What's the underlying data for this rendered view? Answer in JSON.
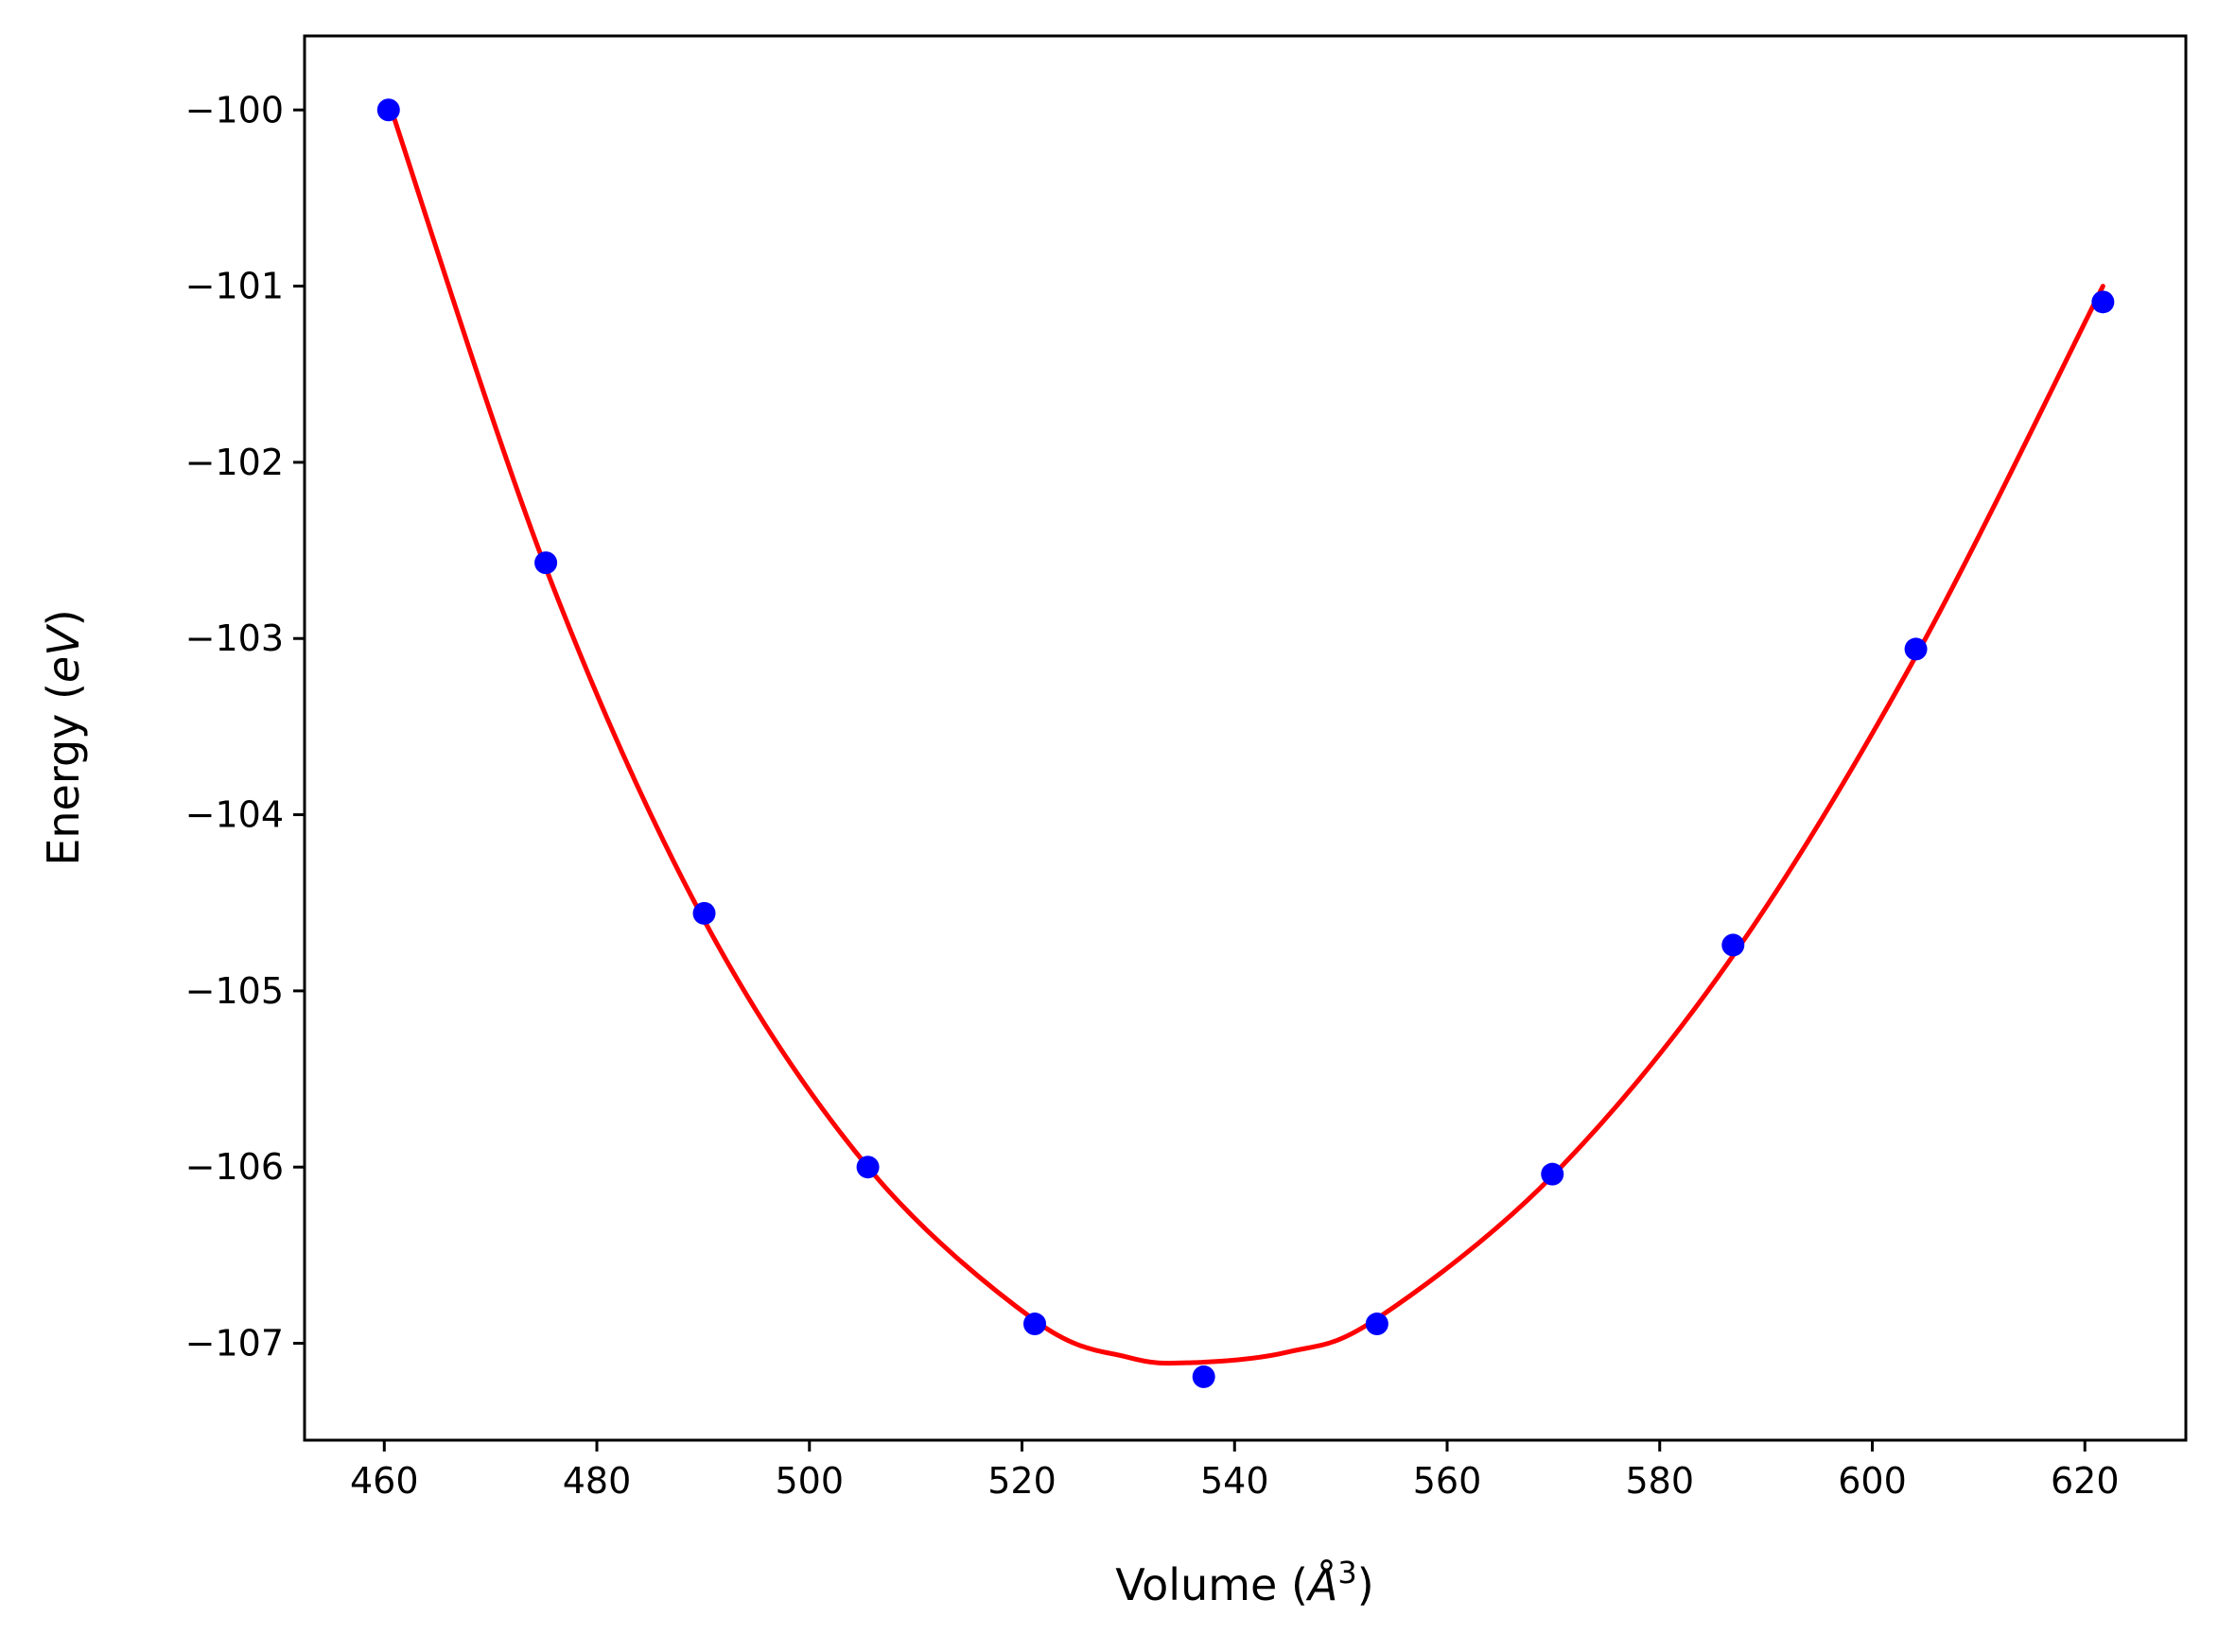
{
  "chart_data": {
    "type": "scatter",
    "title": "",
    "xlabel": "Volume",
    "xlabel_math": "Å",
    "xlabel_sup": "3",
    "ylabel": "Energy",
    "ylabel_math": "eV",
    "xlim": [
      452.5,
      629.5
    ],
    "ylim": [
      -107.55,
      -99.58
    ],
    "xticks": [
      460,
      480,
      500,
      520,
      540,
      560,
      580,
      600,
      620
    ],
    "yticks": [
      -100,
      -101,
      -102,
      -103,
      -104,
      -105,
      -106,
      -107
    ],
    "xtick_labels": [
      "460",
      "480",
      "500",
      "520",
      "540",
      "560",
      "580",
      "600",
      "620"
    ],
    "ytick_labels": [
      "−100",
      "−101",
      "−102",
      "−103",
      "−104",
      "−105",
      "−106",
      "−107"
    ],
    "grid": false,
    "series": [
      {
        "kind": "points",
        "color": "#0000ff",
        "x": [
          460.4,
          475.2,
          490.1,
          505.5,
          521.2,
          537.1,
          553.4,
          569.9,
          586.9,
          604.1,
          621.7
        ],
        "y": [
          -100.0,
          -102.57,
          -104.56,
          -106.0,
          -106.89,
          -107.19,
          -106.89,
          -106.04,
          -104.74,
          -103.06,
          -101.09
        ]
      },
      {
        "kind": "fit-line",
        "color": "#ff0000",
        "x": [
          460.4,
          475.2,
          490.1,
          505.5,
          521.2,
          530.0,
          536.0,
          545.0,
          553.4,
          569.9,
          586.9,
          604.1,
          621.7
        ],
        "y": [
          -99.95,
          -102.6,
          -104.6,
          -106.0,
          -106.87,
          -107.08,
          -107.11,
          -107.05,
          -106.86,
          -106.05,
          -104.8,
          -103.1,
          -101.0
        ]
      }
    ]
  }
}
